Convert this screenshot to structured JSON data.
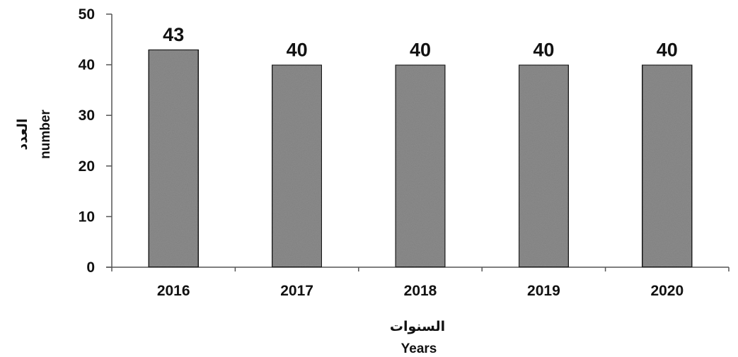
{
  "chart_data": {
    "type": "bar",
    "categories": [
      "2016",
      "2017",
      "2018",
      "2019",
      "2020"
    ],
    "values": [
      43,
      40,
      40,
      40,
      40
    ],
    "data_labels": [
      "43",
      "40",
      "40",
      "40",
      "40"
    ],
    "title": "",
    "xlabel_ar": "السنوات",
    "xlabel": "Years",
    "ylabel_ar": "العدد",
    "ylabel": "number",
    "ylim": [
      0,
      50
    ],
    "yticks": [
      "0",
      "10",
      "20",
      "30",
      "40",
      "50"
    ],
    "grid": false,
    "legend": "none",
    "bar_color": "#8c8c8c",
    "bar_edge_color": "#1a1a1a"
  }
}
